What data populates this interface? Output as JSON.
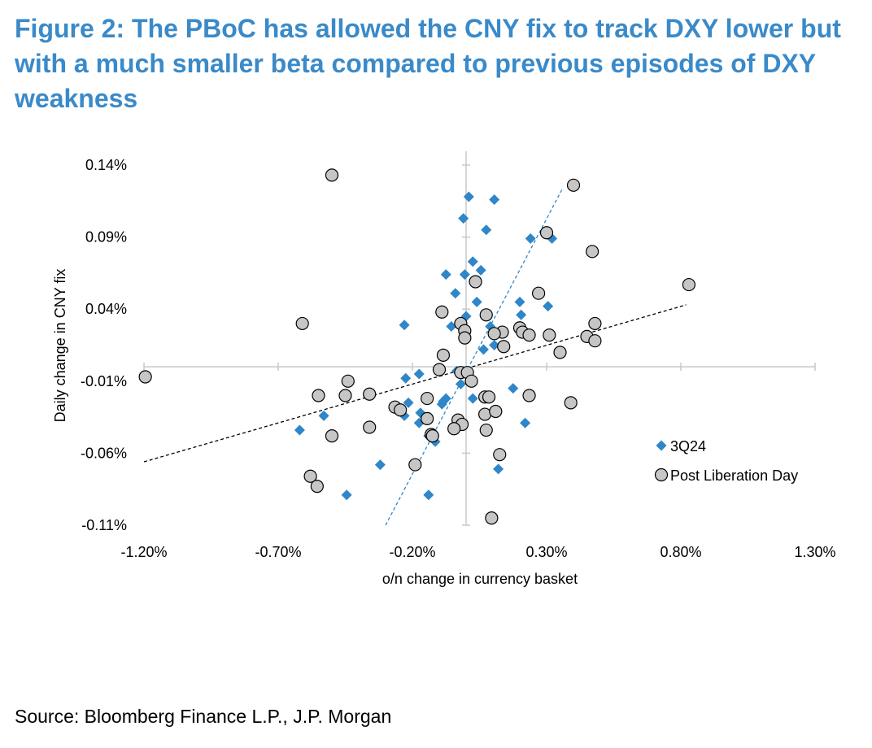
{
  "header": {
    "title": "Figure 2: The PBoC has allowed the CNY fix to track DXY lower but with a much smaller beta compared to previous episodes of DXY weakness"
  },
  "footer": {
    "source": "Source: Bloomberg Finance L.P., J.P. Morgan"
  },
  "colors": {
    "title": "#3a8ac9",
    "series_3q24": "#2f86c8",
    "series_pld_fill": "#c6c6c6",
    "trend_3q24": "#2f86c8",
    "trend_pld": "#000000",
    "axis": "#c8c8c8"
  },
  "chart_data": {
    "type": "scatter",
    "xlabel": "o/n change in currency basket",
    "ylabel": "Daily change in CNY fix",
    "xlim": [
      -1.2,
      1.3
    ],
    "ylim": [
      -0.11,
      0.14
    ],
    "x_ticks": [
      -1.2,
      -0.7,
      -0.2,
      0.3,
      0.8,
      1.3
    ],
    "x_tick_labels": [
      "-1.20%",
      "-0.70%",
      "-0.20%",
      "0.30%",
      "0.80%",
      "1.30%"
    ],
    "y_ticks": [
      0.14,
      0.09,
      0.04,
      -0.01,
      -0.06,
      -0.11
    ],
    "y_tick_labels": [
      "0.14%",
      "0.09%",
      "0.04%",
      "-0.01%",
      "-0.06%",
      "-0.11%"
    ],
    "units": "%",
    "legend_position": "right",
    "series": [
      {
        "name": "3Q24",
        "marker": "diamond",
        "points": [
          [
            0.01,
            0.118
          ],
          [
            0.105,
            0.116
          ],
          [
            -0.01,
            0.103
          ],
          [
            0.075,
            0.095
          ],
          [
            0.24,
            0.089
          ],
          [
            0.32,
            0.089
          ],
          [
            0.025,
            0.073
          ],
          [
            0.055,
            0.067
          ],
          [
            -0.075,
            0.064
          ],
          [
            -0.005,
            0.064
          ],
          [
            -0.04,
            0.051
          ],
          [
            0.04,
            0.045
          ],
          [
            0.2,
            0.045
          ],
          [
            0.305,
            0.042
          ],
          [
            0.205,
            0.036
          ],
          [
            0.0,
            0.035
          ],
          [
            -0.23,
            0.029
          ],
          [
            -0.055,
            0.028
          ],
          [
            0.09,
            0.028
          ],
          [
            0.105,
            0.015
          ],
          [
            0.065,
            0.012
          ],
          [
            -0.1,
            -0.002
          ],
          [
            -0.035,
            -0.003
          ],
          [
            -0.175,
            -0.005
          ],
          [
            -0.225,
            -0.008
          ],
          [
            -0.02,
            -0.012
          ],
          [
            0.175,
            -0.015
          ],
          [
            0.025,
            -0.022
          ],
          [
            -0.215,
            -0.025
          ],
          [
            -0.075,
            -0.022
          ],
          [
            -0.085,
            -0.024
          ],
          [
            -0.17,
            -0.032
          ],
          [
            -0.09,
            -0.026
          ],
          [
            -0.53,
            -0.034
          ],
          [
            -0.23,
            -0.034
          ],
          [
            -0.175,
            -0.039
          ],
          [
            0.22,
            -0.039
          ],
          [
            -0.62,
            -0.044
          ],
          [
            -0.13,
            -0.047
          ],
          [
            -0.115,
            -0.052
          ],
          [
            -0.14,
            -0.048
          ],
          [
            -0.32,
            -0.068
          ],
          [
            0.12,
            -0.071
          ],
          [
            -0.445,
            -0.089
          ],
          [
            -0.14,
            -0.089
          ]
        ]
      },
      {
        "name": "Post Liberation Day",
        "marker": "circle",
        "points": [
          [
            -0.5,
            0.133
          ],
          [
            0.4,
            0.126
          ],
          [
            0.3,
            0.093
          ],
          [
            0.47,
            0.08
          ],
          [
            0.83,
            0.057
          ],
          [
            0.035,
            0.059
          ],
          [
            0.27,
            0.051
          ],
          [
            -0.09,
            0.038
          ],
          [
            0.075,
            0.036
          ],
          [
            -0.61,
            0.03
          ],
          [
            0.48,
            0.03
          ],
          [
            -0.02,
            0.03
          ],
          [
            0.2,
            0.027
          ],
          [
            0.21,
            0.024
          ],
          [
            0.135,
            0.024
          ],
          [
            -0.005,
            0.025
          ],
          [
            0.105,
            0.023
          ],
          [
            0.235,
            0.022
          ],
          [
            0.31,
            0.022
          ],
          [
            0.45,
            0.021
          ],
          [
            -0.005,
            0.02
          ],
          [
            0.48,
            0.018
          ],
          [
            0.14,
            0.014
          ],
          [
            0.35,
            0.01
          ],
          [
            -0.085,
            0.008
          ],
          [
            -0.1,
            -0.002
          ],
          [
            -0.02,
            -0.004
          ],
          [
            0.005,
            -0.004
          ],
          [
            0.02,
            -0.01
          ],
          [
            -0.44,
            -0.01
          ],
          [
            -0.36,
            -0.019
          ],
          [
            -0.55,
            -0.02
          ],
          [
            -0.45,
            -0.02
          ],
          [
            0.07,
            -0.021
          ],
          [
            0.085,
            -0.021
          ],
          [
            0.235,
            -0.02
          ],
          [
            -0.145,
            -0.022
          ],
          [
            0.39,
            -0.025
          ],
          [
            -0.265,
            -0.028
          ],
          [
            -0.245,
            -0.03
          ],
          [
            0.07,
            -0.033
          ],
          [
            0.11,
            -0.031
          ],
          [
            -0.145,
            -0.036
          ],
          [
            -0.03,
            -0.037
          ],
          [
            -0.015,
            -0.04
          ],
          [
            -0.36,
            -0.042
          ],
          [
            0.075,
            -0.044
          ],
          [
            -0.045,
            -0.043
          ],
          [
            -0.5,
            -0.048
          ],
          [
            -0.13,
            -0.047
          ],
          [
            -0.125,
            -0.048
          ],
          [
            0.125,
            -0.061
          ],
          [
            -0.19,
            -0.068
          ],
          [
            -0.58,
            -0.076
          ],
          [
            -0.555,
            -0.083
          ],
          [
            0.095,
            -0.105
          ],
          [
            -1.195,
            -0.007
          ]
        ]
      }
    ],
    "trendlines": [
      {
        "series": "3Q24",
        "style": "dashed",
        "from": [
          -0.3,
          -0.11
        ],
        "to": [
          0.36,
          0.124
        ]
      },
      {
        "series": "Post Liberation Day",
        "style": "dashed",
        "from": [
          -1.2,
          -0.066
        ],
        "to": [
          0.82,
          0.043
        ]
      }
    ]
  }
}
